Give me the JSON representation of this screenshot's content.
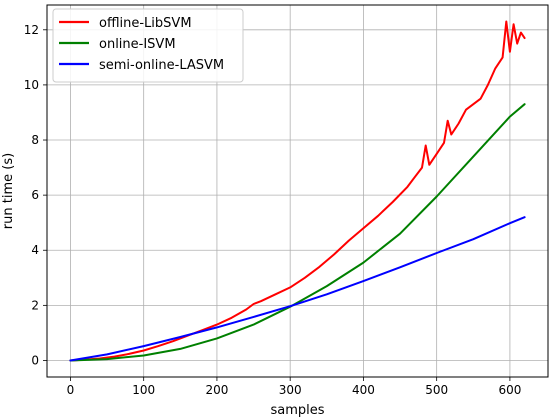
{
  "chart_data": {
    "type": "line",
    "xlabel": "samples",
    "ylabel": "run time (s)",
    "xlim": [
      -32,
      652
    ],
    "ylim": [
      -0.6,
      12.9
    ],
    "xticks": [
      0,
      100,
      200,
      300,
      400,
      500,
      600
    ],
    "yticks": [
      0,
      2,
      4,
      6,
      8,
      10,
      12
    ],
    "grid": true,
    "legend_position": "top-left",
    "series": [
      {
        "name": "offline-LibSVM",
        "color": "#ff0000",
        "x": [
          0,
          20,
          40,
          60,
          80,
          100,
          120,
          140,
          160,
          180,
          200,
          220,
          240,
          250,
          260,
          280,
          300,
          320,
          340,
          360,
          380,
          400,
          420,
          440,
          460,
          470,
          480,
          485,
          490,
          500,
          510,
          515,
          520,
          530,
          540,
          550,
          560,
          570,
          580,
          590,
          595,
          600,
          605,
          610,
          615,
          620
        ],
        "y": [
          0,
          0.03,
          0.07,
          0.14,
          0.24,
          0.36,
          0.52,
          0.7,
          0.9,
          1.1,
          1.3,
          1.55,
          1.85,
          2.05,
          2.15,
          2.4,
          2.65,
          3.0,
          3.4,
          3.85,
          4.35,
          4.8,
          5.25,
          5.75,
          6.3,
          6.65,
          7.0,
          7.8,
          7.1,
          7.5,
          7.9,
          8.7,
          8.2,
          8.6,
          9.1,
          9.3,
          9.5,
          10.0,
          10.6,
          11.0,
          12.3,
          11.2,
          12.2,
          11.5,
          11.9,
          11.7
        ]
      },
      {
        "name": "online-ISVM",
        "color": "#008000",
        "x": [
          0,
          50,
          100,
          150,
          200,
          250,
          300,
          350,
          400,
          450,
          500,
          550,
          600,
          620
        ],
        "y": [
          0,
          0.05,
          0.18,
          0.42,
          0.8,
          1.3,
          1.95,
          2.7,
          3.55,
          4.6,
          5.95,
          7.4,
          8.85,
          9.3
        ]
      },
      {
        "name": "semi-online-LASVM",
        "color": "#0000ff",
        "x": [
          0,
          50,
          100,
          150,
          200,
          250,
          300,
          350,
          400,
          450,
          500,
          550,
          600,
          620
        ],
        "y": [
          0,
          0.22,
          0.52,
          0.85,
          1.2,
          1.58,
          1.97,
          2.4,
          2.88,
          3.38,
          3.9,
          4.4,
          4.98,
          5.2
        ]
      }
    ]
  }
}
